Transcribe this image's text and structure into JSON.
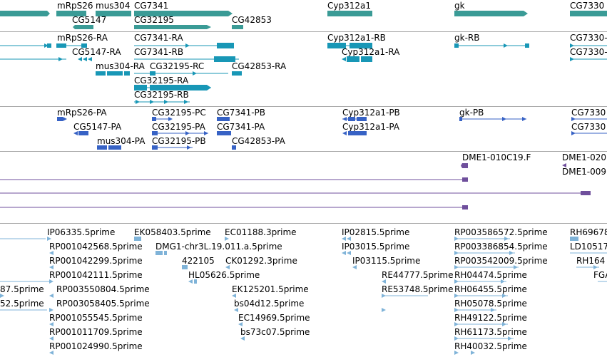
{
  "colors": {
    "gene": "#3a9b96",
    "mrna": "#1897b6",
    "protein": "#3762c5",
    "clone": "#6f4f9c",
    "est": "#7fb3d8"
  },
  "tracks": {
    "genes": {
      "labels": [
        "mRpS26",
        "mus304",
        "CG7341",
        "Cyp312a1",
        "gk",
        "CG7330",
        "CG5147",
        "CG32195",
        "CG42853"
      ]
    },
    "mrnas": {
      "labels": [
        "mRpS26-RA",
        "CG7341-RA",
        "Cyp312a1-RB",
        "gk-RB",
        "CG7330-",
        "CG5147-RA",
        "CG7341-RB",
        "Cyp312a1-RA",
        "CG7330-",
        "mus304-RA",
        "CG32195-RC",
        "CG42853-RA",
        "CG32195-RA",
        "CG32195-RB"
      ]
    },
    "proteins": {
      "labels": [
        "mRpS26-PA",
        "CG32195-PC",
        "CG7341-PB",
        "Cyp312a1-PB",
        "gk-PB",
        "CG7330",
        "CG5147-PA",
        "CG32195-PA",
        "CG7341-PA",
        "Cyp312a1-PA",
        "CG7330",
        "mus304-PA",
        "CG32195-PB",
        "CG42853-PA"
      ]
    },
    "clones": {
      "labels": [
        "DME1-010C19.F",
        "DME1-020",
        "DME1-009"
      ]
    },
    "ests": {
      "labels": [
        "IP06335.5prime",
        "EK058403.5prime",
        "EC01188.3prime",
        "IP02815.5prime",
        "RP003586572.5prime",
        "RH69678",
        "RP001042568.5prime",
        "DMG1-chr3L.19.011.a.5prime",
        "IP03015.5prime",
        "RP003386854.5prime",
        "LD10517",
        "RP001042299.5prime",
        "422105",
        "CK01292.3prime",
        "IP03115.5prime",
        "RP003542009.5prime",
        "RH164",
        "RP001042111.5prime",
        "HL05626.5prime",
        "RE44777.5prime",
        "RH04474.5prime",
        "FGA",
        "87.5prime",
        "RP003550804.5prime",
        "EK125201.5prime",
        "RE53748.5prime",
        "RH06455.5prime",
        "52.5prime",
        "RP003058405.5prime",
        "bs04d12.5prime",
        "RH05078.5prime",
        "RP001055545.5prime",
        "EC14969.5prime",
        "RH49122.5prime",
        "RP001011709.5prime",
        "bs73c07.5prime",
        "RH61173.5prime",
        "RP001024990.5prime",
        "RH40032.5prime"
      ]
    }
  }
}
